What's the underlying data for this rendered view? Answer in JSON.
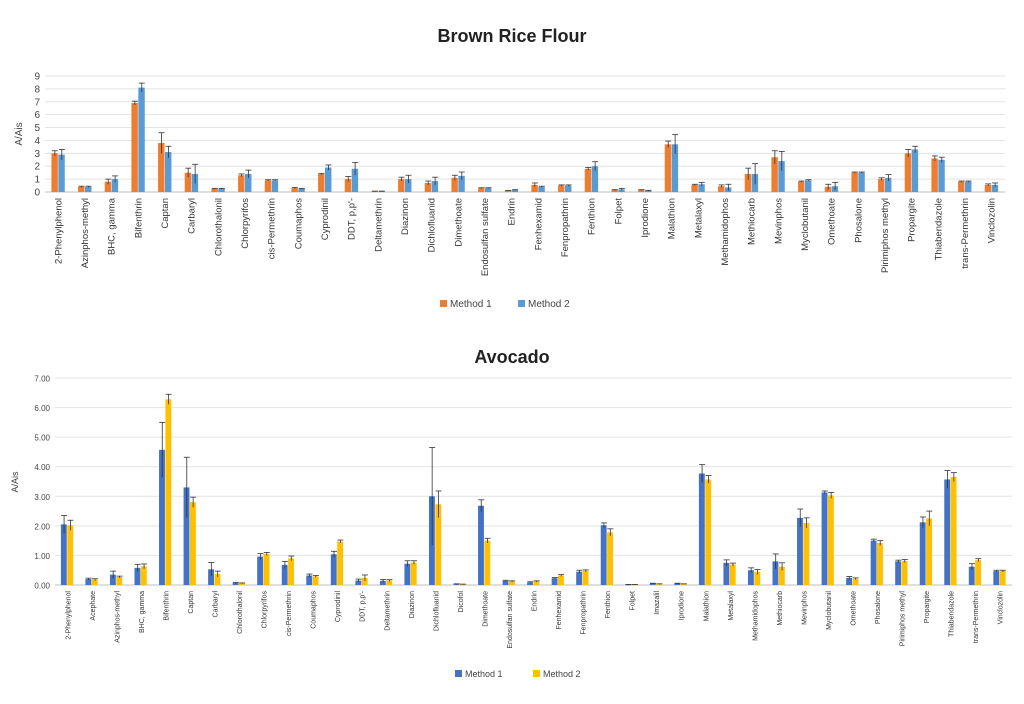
{
  "chart_data": [
    {
      "type": "bar",
      "title": "Brown Rice Flour",
      "xlabel": "",
      "ylabel": "A/Ais",
      "ylim": [
        0,
        9
      ],
      "yticks": [
        "0",
        "1",
        "2",
        "3",
        "4",
        "5",
        "6",
        "7",
        "8",
        "9"
      ],
      "grid": true,
      "legend": "bottom",
      "categories": [
        "2-Phenylphenol",
        "Azinphos-methyl",
        "BHC, gamma",
        "Bifenthrin",
        "Captan",
        "Carbaryl",
        "Chlorothalonil",
        "Chlorpyrifos",
        "cis-Permethrin",
        "Coumaphos",
        "Cyprodinil",
        "DDT, p,p'-",
        "Deltamethrin",
        "Diazinon",
        "Dichlofluanid",
        "Dimethoate",
        "Endosulfan sulfate",
        "Endrin",
        "Fenhexamid",
        "Fenpropathrin",
        "Fenthion",
        "Folpet",
        "Iprodione",
        "Malathion",
        "Metalaxyl",
        "Methamidophos",
        "Methiocarb",
        "Mevinphos",
        "Myclobutanil",
        "Omethoate",
        "Phosalone",
        "Pirimiphos methyl",
        "Propargite",
        "Thiabendazole",
        "trans-Permethrin",
        "Vinclozolin"
      ],
      "series": [
        {
          "name": "Method 1",
          "color": "#ED7D31",
          "values": [
            3.0,
            0.4,
            0.8,
            6.9,
            3.8,
            1.5,
            0.25,
            1.3,
            0.9,
            0.3,
            1.4,
            1.0,
            0.05,
            1.0,
            0.7,
            1.1,
            0.3,
            0.1,
            0.55,
            0.5,
            1.8,
            0.15,
            0.15,
            3.7,
            0.55,
            0.45,
            1.4,
            2.7,
            0.8,
            0.4,
            1.5,
            1.0,
            3.0,
            2.6,
            0.8,
            0.55
          ],
          "errors": [
            0.2,
            0.05,
            0.2,
            0.15,
            0.8,
            0.35,
            0.03,
            0.1,
            0.05,
            0.05,
            0.05,
            0.2,
            0.02,
            0.15,
            0.15,
            0.2,
            0.03,
            0.02,
            0.15,
            0.05,
            0.1,
            0.03,
            0.03,
            0.25,
            0.05,
            0.1,
            0.45,
            0.5,
            0.05,
            0.2,
            0.05,
            0.1,
            0.3,
            0.2,
            0.05,
            0.08
          ]
        },
        {
          "name": "Method 2",
          "color": "#5B9BD5",
          "values": [
            2.9,
            0.4,
            1.0,
            8.1,
            3.1,
            1.4,
            0.25,
            1.4,
            0.9,
            0.25,
            1.9,
            1.8,
            0.05,
            1.0,
            0.85,
            1.25,
            0.3,
            0.15,
            0.4,
            0.5,
            2.0,
            0.2,
            0.1,
            3.7,
            0.6,
            0.35,
            1.4,
            2.4,
            0.9,
            0.45,
            1.5,
            1.1,
            3.3,
            2.5,
            0.8,
            0.55
          ],
          "errors": [
            0.4,
            0.05,
            0.25,
            0.35,
            0.45,
            0.75,
            0.03,
            0.3,
            0.05,
            0.03,
            0.2,
            0.5,
            0.02,
            0.3,
            0.3,
            0.3,
            0.03,
            0.03,
            0.05,
            0.05,
            0.35,
            0.08,
            0.03,
            0.75,
            0.15,
            0.25,
            0.8,
            0.75,
            0.05,
            0.3,
            0.05,
            0.25,
            0.25,
            0.2,
            0.05,
            0.15
          ]
        }
      ]
    },
    {
      "type": "bar",
      "title": "Avocado",
      "xlabel": "",
      "ylabel": "A/Ais",
      "ylim": [
        0,
        7
      ],
      "yticks": [
        "0.00",
        "1.00",
        "2.00",
        "3.00",
        "4.00",
        "5.00",
        "6.00",
        "7.00"
      ],
      "grid": true,
      "legend": "bottom",
      "categories": [
        "2-Phenylphenol",
        "Acephate",
        "Azinphos-methyl",
        "BHC, gamma",
        "Bifenthrin",
        "Captan",
        "Carbaryl",
        "Chlorothalonil",
        "Chlorpyrifos",
        "cis-Permethrin",
        "Coumaphos",
        "Cyprodinil",
        "DDT, p,p'-",
        "Deltamethrin",
        "Diazinon",
        "Dichlofluanid",
        "Dicofol",
        "Dimethoate",
        "Endosulfan sulfate",
        "Endrin",
        "Fenhexamid",
        "Fenpropathrin",
        "Fenthion",
        "Folpet",
        "Imazalil",
        "Iprodione",
        "Malathion",
        "Metalaxyl",
        "Methamidophos",
        "Methiocarb",
        "Mevinphos",
        "Myclobutanil",
        "Omethoate",
        "Phosalone",
        "Pirimiphos methyl",
        "Propargite",
        "Thiabendazole",
        "trans-Permethrin",
        "Vinclozolin"
      ],
      "series": [
        {
          "name": "Method 1",
          "color": "#4472C4",
          "values": [
            2.05,
            0.2,
            0.35,
            0.58,
            4.57,
            3.3,
            0.53,
            0.07,
            0.96,
            0.68,
            0.32,
            1.04,
            0.15,
            0.14,
            0.72,
            3.0,
            0.03,
            2.68,
            0.14,
            0.09,
            0.23,
            0.45,
            2.02,
            0.01,
            0.05,
            0.05,
            3.77,
            0.75,
            0.5,
            0.8,
            2.27,
            3.13,
            0.24,
            1.5,
            0.8,
            2.12,
            3.57,
            0.62,
            0.47
          ],
          "errors": [
            0.3,
            0.03,
            0.12,
            0.12,
            0.93,
            1.02,
            0.23,
            0.02,
            0.1,
            0.12,
            0.05,
            0.1,
            0.05,
            0.05,
            0.1,
            1.65,
            0.01,
            0.2,
            0.02,
            0.02,
            0.02,
            0.05,
            0.08,
            0.01,
            0.01,
            0.01,
            0.3,
            0.1,
            0.08,
            0.25,
            0.3,
            0.05,
            0.05,
            0.05,
            0.04,
            0.18,
            0.3,
            0.1,
            0.03
          ]
        },
        {
          "name": "Method 2",
          "color": "#FFC000",
          "values": [
            2.02,
            0.18,
            0.27,
            0.63,
            6.28,
            2.8,
            0.37,
            0.06,
            1.05,
            0.9,
            0.29,
            1.47,
            0.24,
            0.15,
            0.76,
            2.73,
            0.02,
            1.5,
            0.12,
            0.12,
            0.32,
            0.48,
            1.78,
            0.01,
            0.03,
            0.03,
            3.57,
            0.69,
            0.44,
            0.62,
            2.1,
            3.03,
            0.21,
            1.42,
            0.81,
            2.25,
            3.65,
            0.84,
            0.47
          ],
          "errors": [
            0.17,
            0.03,
            0.03,
            0.08,
            0.17,
            0.17,
            0.1,
            0.01,
            0.05,
            0.08,
            0.03,
            0.05,
            0.1,
            0.03,
            0.06,
            0.45,
            0.01,
            0.08,
            0.02,
            0.02,
            0.03,
            0.03,
            0.12,
            0.01,
            0.01,
            0.01,
            0.13,
            0.05,
            0.08,
            0.13,
            0.17,
            0.1,
            0.03,
            0.08,
            0.05,
            0.25,
            0.15,
            0.05,
            0.03
          ]
        }
      ]
    }
  ]
}
